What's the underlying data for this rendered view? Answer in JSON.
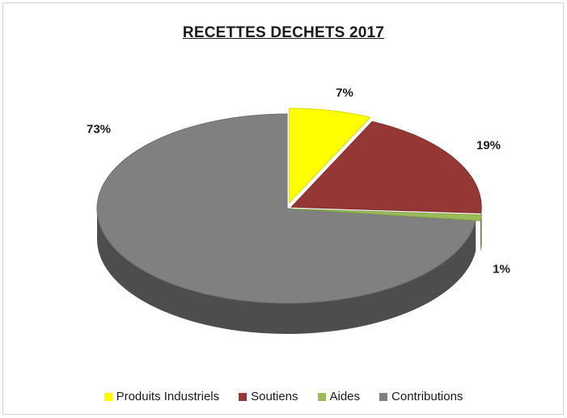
{
  "chart_data": {
    "type": "pie",
    "title": "RECETTES DECHETS 2017",
    "series": [
      {
        "name": "Produits Industriels",
        "value": 7,
        "label": "7%",
        "color": "#ffff00"
      },
      {
        "name": "Soutiens",
        "value": 19,
        "label": "19%",
        "color": "#953735"
      },
      {
        "name": "Aides",
        "value": 1,
        "label": "1%",
        "color": "#9bbb59"
      },
      {
        "name": "Contributions",
        "value": 73,
        "label": "73%",
        "color": "#808080"
      }
    ],
    "legend_position": "bottom",
    "style": "3d-exploded"
  }
}
